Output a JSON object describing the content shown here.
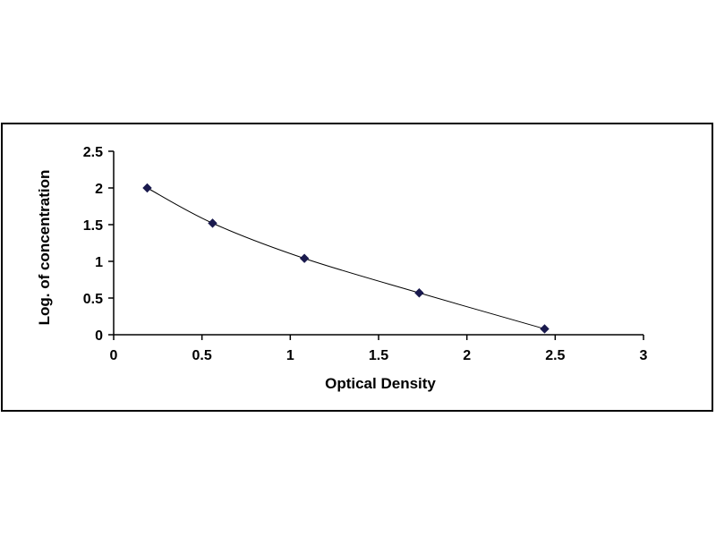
{
  "chart_data": {
    "type": "scatter",
    "title": "",
    "xlabel": "Optical Density",
    "ylabel": "Log. of concentration",
    "xlim": [
      0,
      3
    ],
    "ylim": [
      0,
      2.5
    ],
    "x_ticks": [
      "0",
      "0.5",
      "1",
      "1.5",
      "2",
      "2.5",
      "3"
    ],
    "y_ticks": [
      "0",
      "0.5",
      "1",
      "1.5",
      "2",
      "2.5"
    ],
    "grid": false,
    "legend": "none",
    "series": [
      {
        "x": [
          0.19,
          0.56,
          1.08,
          1.73,
          2.44
        ],
        "y": [
          2.0,
          1.52,
          1.04,
          0.57,
          0.08
        ],
        "marker": "diamond",
        "line": "smooth",
        "color": "#1a1a4e"
      }
    ]
  }
}
